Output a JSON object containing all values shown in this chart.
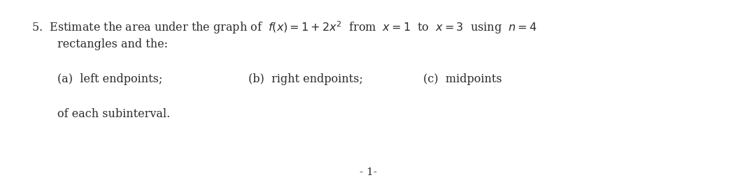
{
  "line1_prefix": "5.  Estimate the area under the graph of  ",
  "line1_math": "$f(x) = 1 + 2x^2$",
  "line1_suffix": "  from  $x = 1$  to  $x = 3$  using  $n = 4$",
  "line2": "   rectangles and the:",
  "line_a": "(a)  left endpoints;",
  "line_b": "(b)  right endpoints;",
  "line_c": "(c)  midpoints",
  "line3": "of each subinterval.",
  "footer": "- 1-",
  "bg_color": "#ffffff",
  "text_color": "#2b2b2b",
  "font_size": 11.5,
  "footer_font_size": 11
}
